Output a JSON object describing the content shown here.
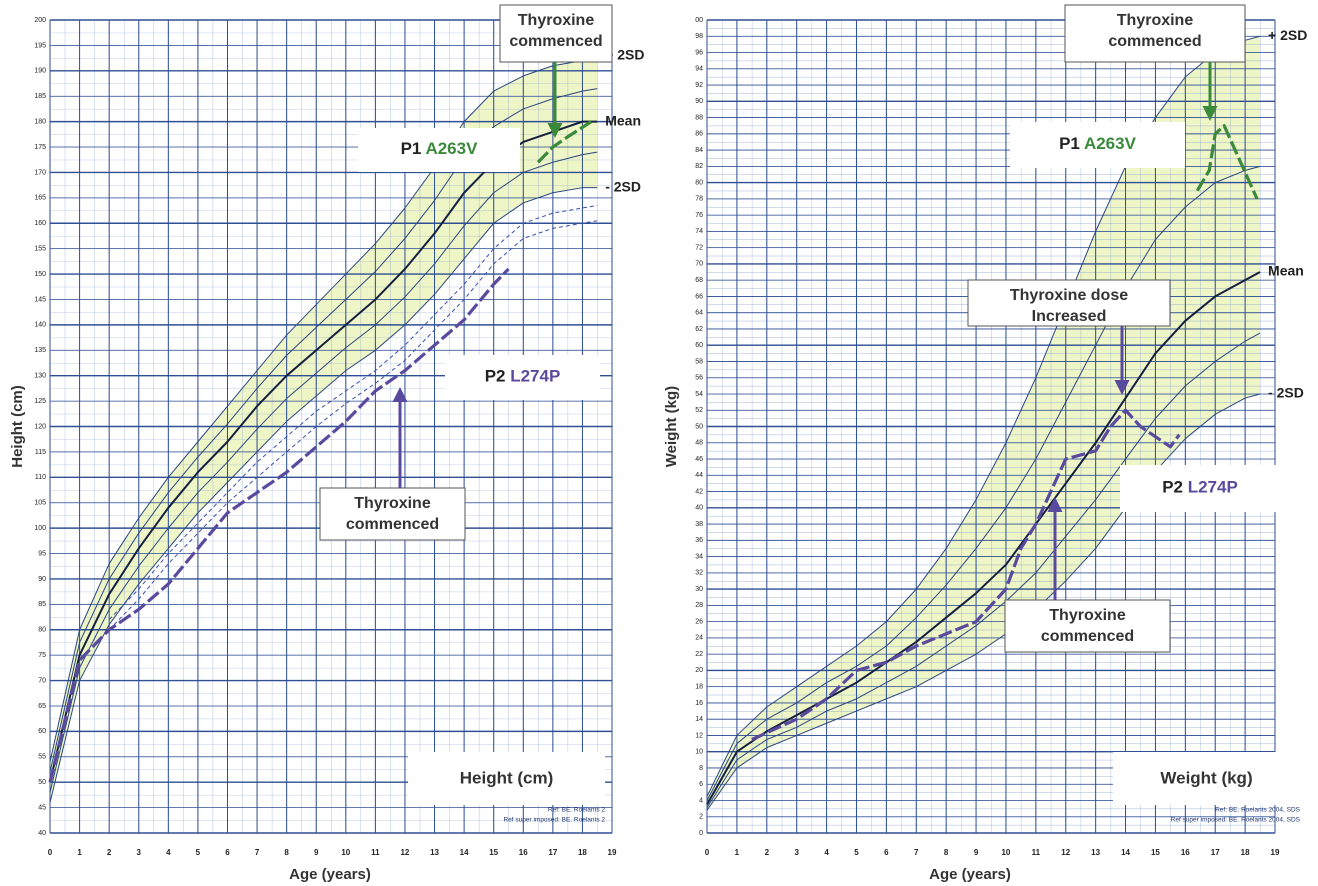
{
  "chart_data": [
    {
      "type": "line",
      "title": "Height (cm)",
      "ylabel": "Height (cm)",
      "xlabel": "Age (years)",
      "refs": [
        "Ref: BE. Roelants 2",
        "Ref super imposed: BE. Roelants 2"
      ],
      "xlim": [
        0,
        19
      ],
      "xticks": [
        0,
        1,
        2,
        3,
        4,
        5,
        6,
        7,
        8,
        9,
        10,
        11,
        12,
        13,
        14,
        15,
        16,
        17,
        18,
        19
      ],
      "ylim": [
        40,
        200
      ],
      "yticks": [
        40,
        45,
        50,
        55,
        60,
        65,
        70,
        75,
        80,
        85,
        90,
        95,
        100,
        105,
        110,
        115,
        120,
        125,
        130,
        135,
        140,
        145,
        150,
        155,
        160,
        165,
        170,
        175,
        180,
        185,
        190,
        195,
        200
      ],
      "grid": true,
      "annotations": [
        {
          "lines": [
            "Thyroxine",
            "commenced"
          ]
        },
        {
          "lines": [
            "Thyroxine",
            "commenced"
          ]
        }
      ],
      "series": [
        {
          "name": "+ 2SD",
          "color": "#2b4680",
          "x": [
            0,
            1,
            2,
            3,
            4,
            5,
            6,
            7,
            8,
            9,
            10,
            11,
            12,
            13,
            14,
            15,
            16,
            17,
            18,
            18.5
          ],
          "values": [
            54,
            80,
            93,
            102,
            110,
            117,
            124,
            131,
            138,
            144,
            150,
            156,
            163,
            171,
            180,
            186,
            189,
            191,
            192,
            193
          ]
        },
        {
          "color": "#2b4680",
          "x": [
            0,
            1,
            2,
            3,
            4,
            5,
            6,
            7,
            8,
            9,
            10,
            11,
            12,
            13,
            14,
            15,
            16,
            17,
            18,
            18.5
          ],
          "values": [
            52,
            77.5,
            90,
            99,
            107,
            114,
            120.5,
            127.5,
            134,
            139.5,
            145,
            150.5,
            157,
            164.5,
            173,
            179,
            182.5,
            184.5,
            186,
            186.5
          ]
        },
        {
          "name": "Mean",
          "color": "#15203f",
          "x": [
            0,
            1,
            2,
            3,
            4,
            5,
            6,
            7,
            8,
            9,
            10,
            11,
            12,
            13,
            14,
            15,
            16,
            17,
            18,
            18.5
          ],
          "values": [
            50,
            75,
            87,
            96,
            104,
            111,
            117,
            124,
            130,
            135,
            140,
            145,
            151,
            158,
            166,
            172,
            176,
            178,
            180,
            180
          ]
        },
        {
          "color": "#2b4680",
          "x": [
            0,
            1,
            2,
            3,
            4,
            5,
            6,
            7,
            8,
            9,
            10,
            11,
            12,
            13,
            14,
            15,
            16,
            17,
            18,
            18.5
          ],
          "values": [
            48,
            72.5,
            84,
            92.5,
            100,
            107,
            113,
            119.5,
            125.5,
            130.5,
            135.5,
            140,
            145.5,
            152,
            159.5,
            166,
            170,
            172,
            173.5,
            174
          ]
        },
        {
          "name": "- 2SD",
          "color": "#2b4680",
          "x": [
            0,
            1,
            2,
            3,
            4,
            5,
            6,
            7,
            8,
            9,
            10,
            11,
            12,
            13,
            14,
            15,
            16,
            17,
            18,
            18.5
          ],
          "values": [
            46,
            70,
            81,
            89,
            96,
            103,
            109,
            115,
            121,
            126,
            131,
            135,
            140,
            146,
            153,
            160,
            164,
            166,
            167,
            167
          ]
        },
        {
          "color": "#3a4fa8",
          "dashed": true,
          "x": [
            2,
            3,
            4,
            5,
            6,
            7,
            8,
            9,
            10,
            11,
            12,
            13,
            14,
            15,
            16,
            17,
            18,
            18.5
          ],
          "values": [
            82,
            88,
            95,
            101,
            107,
            113,
            118,
            123,
            127,
            131,
            136,
            142,
            148,
            155,
            160,
            162,
            163,
            163.5
          ]
        },
        {
          "color": "#3a4fa8",
          "dashed": true,
          "x": [
            2,
            3,
            4,
            5,
            6,
            7,
            8,
            9,
            10,
            11,
            12,
            13,
            14,
            15,
            16,
            17,
            18,
            18.5
          ],
          "values": [
            80,
            86,
            93,
            99,
            105,
            110,
            115,
            120,
            124.5,
            128.5,
            133,
            139,
            145,
            152,
            157,
            159,
            160,
            160.5
          ]
        },
        {
          "name": "P2",
          "variant": "L274P",
          "patient": true,
          "color": "#5a4a9e",
          "x": [
            0,
            0.5,
            1,
            2,
            3,
            4,
            5,
            6,
            6.5,
            8,
            9,
            10,
            10.5,
            11,
            12,
            13,
            14,
            15,
            15.5
          ],
          "values": [
            50,
            62,
            74,
            80,
            84,
            89,
            96,
            103,
            105,
            111,
            116,
            121,
            124,
            127,
            131,
            136,
            141,
            148,
            151
          ]
        },
        {
          "name": "P1",
          "variant": "A263V",
          "patient": true,
          "color": "#3b8a3b",
          "x": [
            16.5,
            17,
            17.5,
            18.3
          ],
          "values": [
            172,
            175,
            177,
            180
          ]
        }
      ]
    },
    {
      "type": "line",
      "title": "Weight (kg)",
      "ylabel": "Weight (kg)",
      "xlabel": "Age (years)",
      "refs": [
        "Ref: BE. Roelants 2004, SDS",
        "Ref super imposed: BE. Roelants 2004, SDS"
      ],
      "xlim": [
        0,
        19
      ],
      "xticks": [
        0,
        1,
        2,
        3,
        4,
        5,
        6,
        7,
        8,
        9,
        10,
        11,
        12,
        13,
        14,
        15,
        16,
        17,
        18,
        19
      ],
      "ylim": [
        0,
        100
      ],
      "yticks": [
        0,
        2,
        4,
        6,
        8,
        10,
        12,
        14,
        16,
        18,
        20,
        22,
        24,
        26,
        28,
        30,
        32,
        34,
        36,
        38,
        40,
        42,
        44,
        46,
        48,
        50,
        52,
        54,
        56,
        58,
        60,
        62,
        64,
        66,
        68,
        70,
        72,
        74,
        76,
        78,
        80,
        82,
        84,
        86,
        88,
        90,
        92,
        94,
        96,
        98,
        {
          "value": 100,
          "label": "00"
        }
      ],
      "grid": true,
      "annotations": [
        {
          "lines": [
            "Thyroxine",
            "commenced"
          ]
        },
        {
          "lines": [
            "Thyroxine dose",
            "Increased"
          ]
        },
        {
          "lines": [
            "Thyroxine",
            "commenced"
          ]
        }
      ],
      "series": [
        {
          "name": "+ 2SD",
          "color": "#2b4680",
          "x": [
            0,
            1,
            2,
            3,
            4,
            5,
            6,
            7,
            8,
            9,
            10,
            11,
            12,
            13,
            14,
            15,
            16,
            17,
            18,
            18.5
          ],
          "values": [
            4.5,
            12,
            15.5,
            18,
            20.5,
            23,
            26,
            30,
            35,
            41,
            48,
            56,
            65,
            74,
            82,
            88,
            93,
            96,
            97.5,
            98
          ]
        },
        {
          "color": "#2b4680",
          "x": [
            0,
            1,
            2,
            3,
            4,
            5,
            6,
            7,
            8,
            9,
            10,
            11,
            12,
            13,
            14,
            15,
            16,
            17,
            18,
            18.5
          ],
          "values": [
            4,
            11,
            14,
            16,
            18.5,
            20.5,
            23,
            26.5,
            30.5,
            35,
            40,
            46,
            53,
            60,
            67,
            73,
            77,
            80,
            81.5,
            82
          ]
        },
        {
          "name": "Mean",
          "color": "#15203f",
          "x": [
            0,
            1,
            2,
            3,
            4,
            5,
            6,
            7,
            8,
            9,
            10,
            11,
            12,
            13,
            14,
            15,
            16,
            17,
            18,
            18.5
          ],
          "values": [
            3.5,
            10,
            12.5,
            14.5,
            16.5,
            18.5,
            21,
            23.5,
            26.5,
            29.5,
            33,
            38,
            43,
            48,
            53.5,
            59,
            63,
            66,
            68,
            69
          ]
        },
        {
          "color": "#2b4680",
          "x": [
            0,
            1,
            2,
            3,
            4,
            5,
            6,
            7,
            8,
            9,
            10,
            11,
            12,
            13,
            14,
            15,
            16,
            17,
            18,
            18.5
          ],
          "values": [
            3.1,
            9,
            11.5,
            13,
            15,
            16.5,
            18.5,
            20.5,
            23,
            25.5,
            28.5,
            32,
            36.5,
            41,
            46,
            51,
            55,
            58,
            60.5,
            61.5
          ]
        },
        {
          "name": "- 2SD",
          "color": "#2b4680",
          "x": [
            0,
            1,
            2,
            3,
            4,
            5,
            6,
            7,
            8,
            9,
            10,
            11,
            12,
            13,
            14,
            15,
            16,
            17,
            18,
            18.5
          ],
          "values": [
            2.8,
            8,
            10.5,
            12,
            13.5,
            15,
            16.5,
            18,
            20,
            22,
            24.5,
            27.5,
            31,
            35,
            40,
            44.5,
            48.5,
            51.5,
            53.5,
            54
          ]
        },
        {
          "name": "P2",
          "variant": "L274P",
          "patient": true,
          "color": "#5a4a9e",
          "x": [
            1.5,
            3,
            4,
            5,
            6,
            7,
            9,
            10,
            10.5,
            11,
            11.5,
            12,
            12.5,
            13,
            13.5,
            14,
            14.5,
            15.5,
            15.8
          ],
          "values": [
            11.5,
            14,
            16.5,
            20,
            21,
            23,
            26,
            30,
            35,
            38,
            42,
            46,
            46.5,
            47,
            50,
            52,
            50,
            47.5,
            49
          ]
        },
        {
          "name": "P1",
          "variant": "A263V",
          "patient": true,
          "color": "#3b8a3b",
          "x": [
            16.4,
            16.8,
            17,
            17.3,
            18.4
          ],
          "values": [
            79,
            81.5,
            86,
            87,
            78
          ]
        }
      ]
    }
  ]
}
